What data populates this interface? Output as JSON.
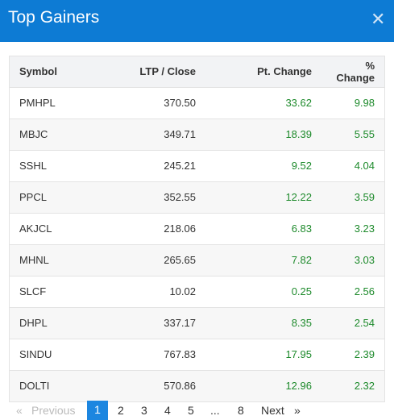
{
  "dialog": {
    "title": "Top Gainers",
    "close_icon": "close-icon"
  },
  "table": {
    "headers": [
      "Symbol",
      "LTP / Close",
      "Pt. Change",
      "% Change"
    ],
    "rows": [
      [
        "PMHPL",
        "370.50",
        "33.62",
        "9.98"
      ],
      [
        "MBJC",
        "349.71",
        "18.39",
        "5.55"
      ],
      [
        "SSHL",
        "245.21",
        "9.52",
        "4.04"
      ],
      [
        "PPCL",
        "352.55",
        "12.22",
        "3.59"
      ],
      [
        "AKJCL",
        "218.06",
        "6.83",
        "3.23"
      ],
      [
        "MHNL",
        "265.65",
        "7.82",
        "3.03"
      ],
      [
        "SLCF",
        "10.02",
        "0.25",
        "2.56"
      ],
      [
        "DHPL",
        "337.17",
        "8.35",
        "2.54"
      ],
      [
        "SINDU",
        "767.83",
        "17.95",
        "2.39"
      ],
      [
        "DOLTI",
        "570.86",
        "12.96",
        "2.32"
      ]
    ]
  },
  "pagination": {
    "prev_icon": "«",
    "prev_label": "Previous",
    "pages": [
      "1",
      "2",
      "3",
      "4",
      "5",
      "...",
      "8"
    ],
    "active": "1",
    "next_label": "Next",
    "next_icon": "»"
  },
  "colors": {
    "header": "#0d7bd4",
    "positive": "#1d8a2b",
    "active_page": "#1c86e0"
  }
}
